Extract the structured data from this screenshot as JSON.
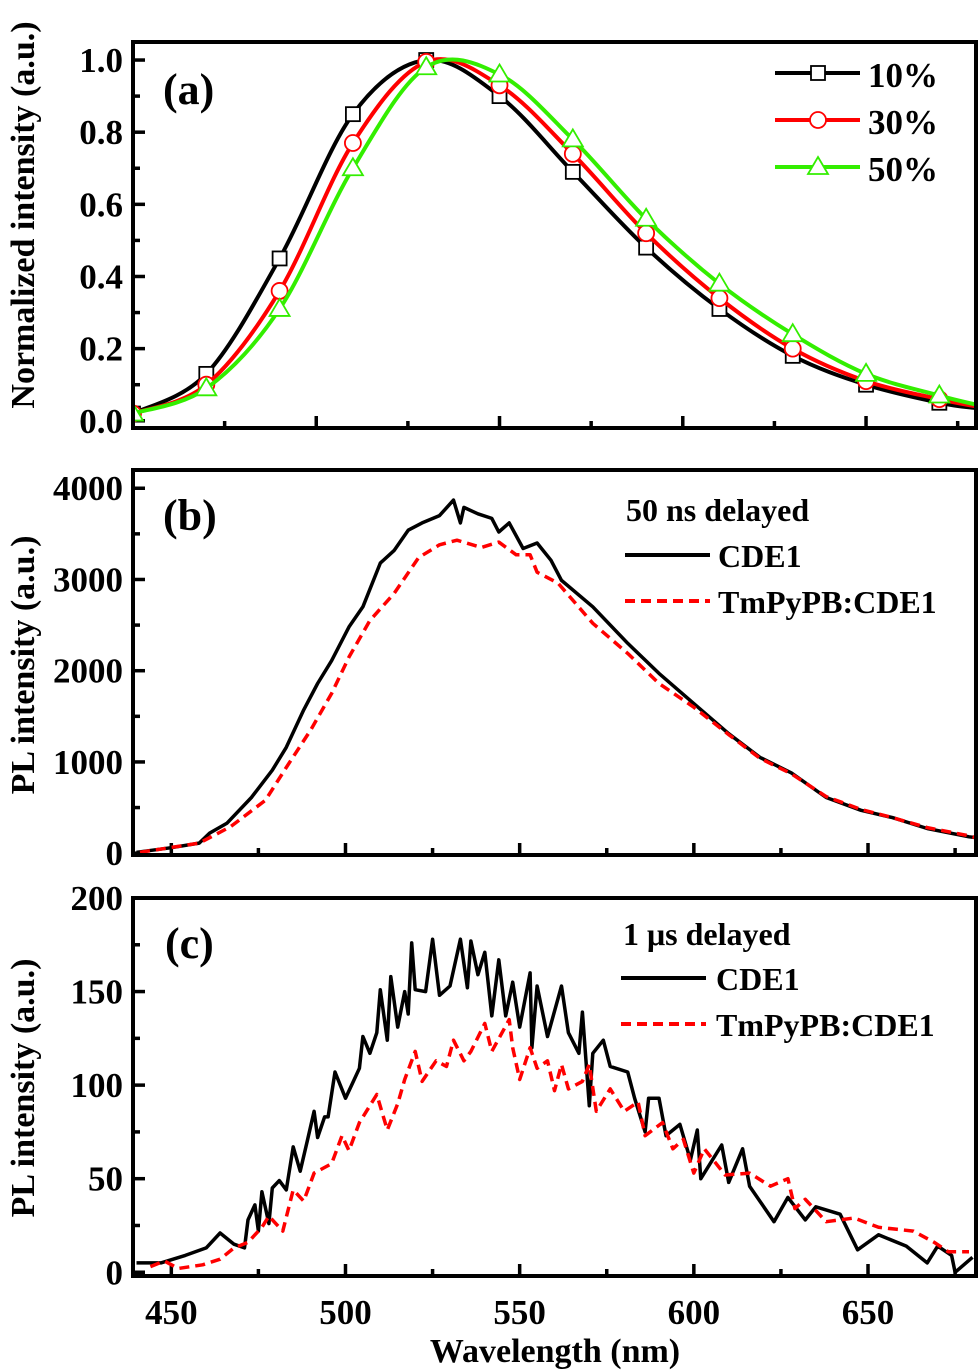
{
  "chart_data": [
    {
      "panel_label": "(a)",
      "type": "line",
      "ylabel": "Normalized intensity (a.u.)",
      "xlabel": "",
      "xlim": [
        450,
        680
      ],
      "ylim": [
        -0.02,
        1.05
      ],
      "xticks": [
        500,
        550,
        600,
        650
      ],
      "x_tick_labels_shown": false,
      "yticks": [
        0.0,
        0.2,
        0.4,
        0.6,
        0.8,
        1.0
      ],
      "ytick_labels": [
        "0.0",
        "0.2",
        "0.4",
        "0.6",
        "0.8",
        "1.0"
      ],
      "legend_placement": "top-right",
      "x": [
        450,
        470,
        490,
        510,
        530,
        550,
        570,
        590,
        610,
        630,
        650,
        670,
        680
      ],
      "series": [
        {
          "name": "10%",
          "color": "#000000",
          "marker": "square",
          "values": [
            0.02,
            0.13,
            0.45,
            0.85,
            1.0,
            0.9,
            0.69,
            0.48,
            0.31,
            0.18,
            0.1,
            0.05,
            0.035
          ]
        },
        {
          "name": "30%",
          "color": "#ff0000",
          "marker": "circle",
          "values": [
            0.02,
            0.1,
            0.36,
            0.77,
            0.995,
            0.93,
            0.74,
            0.52,
            0.34,
            0.2,
            0.11,
            0.06,
            0.04
          ]
        },
        {
          "name": "50%",
          "color": "#33ee00",
          "marker": "triangle",
          "values": [
            0.02,
            0.09,
            0.31,
            0.7,
            0.98,
            0.96,
            0.78,
            0.56,
            0.38,
            0.24,
            0.13,
            0.07,
            0.045
          ]
        }
      ]
    },
    {
      "panel_label": "(b)",
      "type": "line",
      "ylabel": "PL intensity (a.u.)",
      "xlabel": "",
      "xlim": [
        439,
        681
      ],
      "ylim": [
        -20,
        4200
      ],
      "xticks": [
        450,
        500,
        550,
        600,
        650
      ],
      "x_tick_labels_shown": false,
      "yticks": [
        0,
        1000,
        2000,
        3000,
        4000
      ],
      "ytick_labels": [
        "0",
        "1000",
        "2000",
        "3000",
        "4000"
      ],
      "legend_title": "50 ns delayed",
      "legend_placement": "top-right",
      "series": [
        {
          "name": "CDE1",
          "color": "#000000",
          "style": "solid",
          "x": [
            440,
            450,
            458,
            461,
            466,
            473,
            479,
            483,
            488,
            492,
            496,
            501,
            505,
            510,
            514,
            518,
            522,
            527,
            531,
            533,
            534,
            538,
            542,
            544,
            547,
            551,
            555,
            559,
            562,
            571,
            581,
            590,
            600,
            610,
            619,
            628,
            638,
            648,
            657,
            667,
            679,
            681
          ],
          "y": [
            10,
            60,
            110,
            220,
            330,
            610,
            910,
            1160,
            1570,
            1860,
            2110,
            2480,
            2700,
            3180,
            3320,
            3540,
            3620,
            3700,
            3870,
            3620,
            3790,
            3720,
            3670,
            3520,
            3620,
            3340,
            3400,
            3210,
            2990,
            2700,
            2300,
            1970,
            1640,
            1310,
            1050,
            880,
            610,
            470,
            390,
            270,
            180,
            170
          ]
        },
        {
          "name": "TmPyPB:CDE1",
          "color": "#ff0000",
          "style": "dashed",
          "x": [
            441,
            458,
            467,
            477,
            483,
            490,
            496,
            501,
            507,
            514,
            521,
            527,
            532,
            539,
            544,
            549,
            553,
            555,
            561,
            571,
            581,
            590,
            600,
            610,
            619,
            628,
            638,
            648,
            657,
            667,
            679,
            681
          ],
          "y": [
            10,
            110,
            290,
            580,
            940,
            1350,
            1750,
            2150,
            2550,
            2850,
            3240,
            3380,
            3430,
            3350,
            3410,
            3270,
            3270,
            3080,
            2960,
            2520,
            2190,
            1860,
            1600,
            1300,
            1040,
            870,
            620,
            480,
            390,
            280,
            190,
            170
          ]
        }
      ]
    },
    {
      "panel_label": "(c)",
      "type": "line",
      "ylabel": "PL intensity (a.u.)",
      "xlabel": "Wavelength (nm)",
      "xlim": [
        439,
        681
      ],
      "ylim": [
        -2,
        200
      ],
      "xticks": [
        450,
        500,
        550,
        600,
        650
      ],
      "xtick_labels": [
        "450",
        "500",
        "550",
        "600",
        "650"
      ],
      "x_tick_labels_shown": true,
      "yticks": [
        0,
        50,
        100,
        150,
        200
      ],
      "ytick_labels": [
        "0",
        "50",
        "100",
        "150",
        "200"
      ],
      "legend_title": "1 μs delayed",
      "legend_placement": "top-right",
      "series": [
        {
          "name": "CDE1",
          "color": "#000000",
          "style": "solid",
          "x": [
            440,
            447,
            454,
            460,
            464,
            468,
            471,
            472,
            474,
            475,
            476,
            478,
            479,
            481,
            483,
            485,
            487,
            489,
            491,
            492,
            494,
            495,
            497,
            500,
            502,
            504,
            505,
            507,
            509,
            510,
            512,
            513,
            515,
            517,
            518,
            519,
            520,
            523,
            525,
            527,
            530,
            533,
            535,
            536,
            538,
            540,
            541,
            542,
            544,
            546,
            548,
            550,
            553,
            553.5,
            555,
            558,
            562,
            564,
            567,
            568,
            570,
            571,
            574,
            576,
            581,
            583,
            586,
            587,
            590,
            592,
            596,
            599,
            601,
            602,
            608,
            610,
            614,
            616,
            623,
            627,
            632,
            635,
            642,
            647,
            653,
            661,
            667,
            670,
            674,
            675,
            680
          ],
          "y": [
            5,
            5,
            9,
            13,
            21,
            15,
            13,
            28,
            36,
            22,
            43,
            26,
            45,
            49,
            44,
            67,
            54,
            70,
            86,
            72,
            83,
            83,
            107,
            93,
            101,
            109,
            126,
            117,
            128,
            151,
            124,
            158,
            131,
            150,
            138,
            176,
            151,
            150,
            178,
            148,
            153,
            178,
            152,
            177,
            159,
            171,
            154,
            137,
            167,
            137,
            155,
            131,
            160,
            120,
            153,
            126,
            153,
            128,
            117,
            139,
            89,
            117,
            124,
            110,
            107,
            93,
            75,
            93,
            93,
            73,
            79,
            60,
            76,
            50,
            68,
            48,
            66,
            46,
            27,
            40,
            28,
            35,
            31,
            12,
            20,
            14,
            5,
            14,
            9,
            0,
            8
          ]
        },
        {
          "name": "TmPyPB:CDE1",
          "color": "#ff0000",
          "style": "dashed",
          "x": [
            444,
            448,
            452,
            459,
            464,
            468,
            472,
            476,
            478,
            482,
            485,
            488,
            491,
            496,
            499,
            501,
            504,
            506,
            509,
            512,
            515,
            517,
            520,
            522,
            526,
            529,
            531,
            534,
            536,
            540,
            542,
            547,
            548,
            550,
            553,
            555,
            558,
            560,
            562,
            564,
            568,
            570,
            572,
            576,
            580,
            584,
            586,
            591,
            594,
            597,
            600,
            603,
            609,
            616,
            622,
            627,
            629,
            632,
            638,
            646,
            653,
            663,
            669,
            673,
            679
          ],
          "y": [
            3,
            6,
            2,
            4,
            7,
            13,
            16,
            24,
            30,
            22,
            44,
            38,
            53,
            58,
            73,
            65,
            80,
            86,
            95,
            76,
            90,
            103,
            118,
            102,
            113,
            110,
            124,
            113,
            118,
            133,
            118,
            135,
            120,
            103,
            120,
            109,
            113,
            97,
            111,
            98,
            102,
            111,
            86,
            98,
            86,
            91,
            73,
            80,
            66,
            71,
            53,
            66,
            52,
            53,
            46,
            50,
            34,
            39,
            27,
            29,
            24,
            22,
            16,
            11,
            11
          ]
        }
      ]
    }
  ]
}
